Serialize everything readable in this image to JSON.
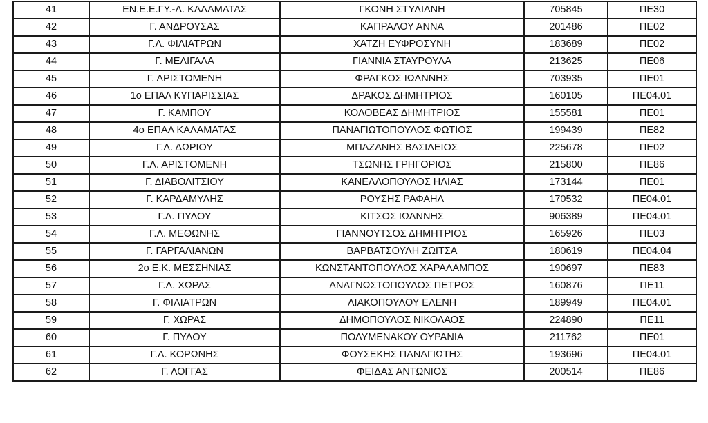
{
  "rows": [
    {
      "no": "41",
      "school": "ΕΝ.Ε.Ε.ΓΥ.-Λ. ΚΑΛΑΜΑΤΑΣ",
      "name": "ΓΚΟΝΗ ΣΤΥΛΙΑΝΗ",
      "am": "705845",
      "specialty": "ΠΕ30"
    },
    {
      "no": "42",
      "school": "Γ. ΑΝΔΡΟΥΣΑΣ",
      "name": "ΚΑΠΡΑΛΟΥ ΑΝΝΑ",
      "am": "201486",
      "specialty": "ΠΕ02"
    },
    {
      "no": "43",
      "school": "Γ.Λ. ΦΙΛΙΑΤΡΩΝ",
      "name": "ΧΑΤΖΗ ΕΥΦΡΟΣΥΝΗ",
      "am": "183689",
      "specialty": "ΠΕ02"
    },
    {
      "no": "44",
      "school": "Γ. ΜΕΛΙΓΑΛΑ",
      "name": "ΓΙΑΝΝΙΑ ΣΤΑΥΡΟΥΛΑ",
      "am": "213625",
      "specialty": "ΠΕ06"
    },
    {
      "no": "45",
      "school": "Γ. ΑΡΙΣΤΟΜΕΝΗ",
      "name": "ΦΡΑΓΚΟΣ ΙΩΑΝΝΗΣ",
      "am": "703935",
      "specialty": "ΠΕ01"
    },
    {
      "no": "46",
      "school": "1ο ΕΠΑΛ ΚΥΠΑΡΙΣΣΙΑΣ",
      "name": "ΔΡΑΚΟΣ ΔΗΜΗΤΡΙΟΣ",
      "am": "160105",
      "specialty": "ΠΕ04.01"
    },
    {
      "no": "47",
      "school": "Γ. ΚΑΜΠΟΥ",
      "name": "ΚΟΛΟΒΕΑΣ ΔΗΜΗΤΡΙΟΣ",
      "am": "155581",
      "specialty": "ΠΕ01"
    },
    {
      "no": "48",
      "school": "4ο ΕΠΑΛ ΚΑΛΑΜΑΤΑΣ",
      "name": "ΠΑΝΑΓΙΩΤΟΠΟΥΛΟΣ ΦΩΤΙΟΣ",
      "am": "199439",
      "specialty": "ΠΕ82"
    },
    {
      "no": "49",
      "school": "Γ.Λ. ΔΩΡΙΟΥ",
      "name": "ΜΠΑΖΑΝΗΣ ΒΑΣΙΛΕΙΟΣ",
      "am": "225678",
      "specialty": "ΠΕ02"
    },
    {
      "no": "50",
      "school": "Γ.Λ. ΑΡΙΣΤΟΜΕΝΗ",
      "name": "ΤΣΩΝΗΣ ΓΡΗΓΟΡΙΟΣ",
      "am": "215800",
      "specialty": "ΠΕ86"
    },
    {
      "no": "51",
      "school": "Γ. ΔΙΑΒΟΛΙΤΣΙΟΥ",
      "name": "ΚΑΝΕΛΛΟΠΟΥΛΟΣ ΗΛΙΑΣ",
      "am": "173144",
      "specialty": "ΠΕ01"
    },
    {
      "no": "52",
      "school": "Γ. ΚΑΡΔΑΜΥΛΗΣ",
      "name": "ΡΟΥΣΗΣ ΡΑΦΑΗΛ",
      "am": "170532",
      "specialty": "ΠΕ04.01"
    },
    {
      "no": "53",
      "school": "Γ.Λ. ΠΥΛΟΥ",
      "name": "ΚΙΤΣΟΣ ΙΩΑΝΝΗΣ",
      "am": "906389",
      "specialty": "ΠΕ04.01"
    },
    {
      "no": "54",
      "school": "Γ.Λ. ΜΕΘΩΝΗΣ",
      "name": "ΓΙΑΝΝΟΥΤΣΟΣ ΔΗΜΗΤΡΙΟΣ",
      "am": "165926",
      "specialty": "ΠΕ03"
    },
    {
      "no": "55",
      "school": "Γ. ΓΑΡΓΑΛΙΑΝΩΝ",
      "name": "ΒΑΡΒΑΤΣΟΥΛΗ ΖΩΙΤΣΑ",
      "am": "180619",
      "specialty": "ΠΕ04.04"
    },
    {
      "no": "56",
      "school": "2ο Ε.Κ. ΜΕΣΣΗΝΙΑΣ",
      "name": "ΚΩΝΣΤΑΝΤΟΠΟΥΛΟΣ ΧΑΡΑΛΑΜΠΟΣ",
      "am": "190697",
      "specialty": "ΠΕ83"
    },
    {
      "no": "57",
      "school": "Γ.Λ. ΧΩΡΑΣ",
      "name": "ΑΝΑΓΝΩΣΤΟΠΟΥΛΟΣ ΠΕΤΡΟΣ",
      "am": "160876",
      "specialty": "ΠΕ11"
    },
    {
      "no": "58",
      "school": "Γ. ΦΙΛΙΑΤΡΩΝ",
      "name": "ΛΙΑΚΟΠΟΥΛΟΥ ΕΛΕΝΗ",
      "am": "189949",
      "specialty": "ΠΕ04.01"
    },
    {
      "no": "59",
      "school": "Γ. ΧΩΡΑΣ",
      "name": "ΔΗΜΟΠΟΥΛΟΣ ΝΙΚΟΛΑΟΣ",
      "am": "224890",
      "specialty": "ΠΕ11"
    },
    {
      "no": "60",
      "school": "Γ. ΠΥΛΟΥ",
      "name": "ΠΟΛΥΜΕΝΑΚΟΥ ΟΥΡΑΝΙΑ",
      "am": "211762",
      "specialty": "ΠΕ01"
    },
    {
      "no": "61",
      "school": "Γ.Λ. ΚΟΡΩΝΗΣ",
      "name": "ΦΟΥΣΕΚΗΣ ΠΑΝΑΓΙΩΤΗΣ",
      "am": "193696",
      "specialty": "ΠΕ04.01"
    },
    {
      "no": "62",
      "school": "Γ. ΛΟΓΓΑΣ",
      "name": "ΦΕΙΔΑΣ ΑΝΤΩΝΙΟΣ",
      "am": "200514",
      "specialty": "ΠΕ86"
    }
  ]
}
